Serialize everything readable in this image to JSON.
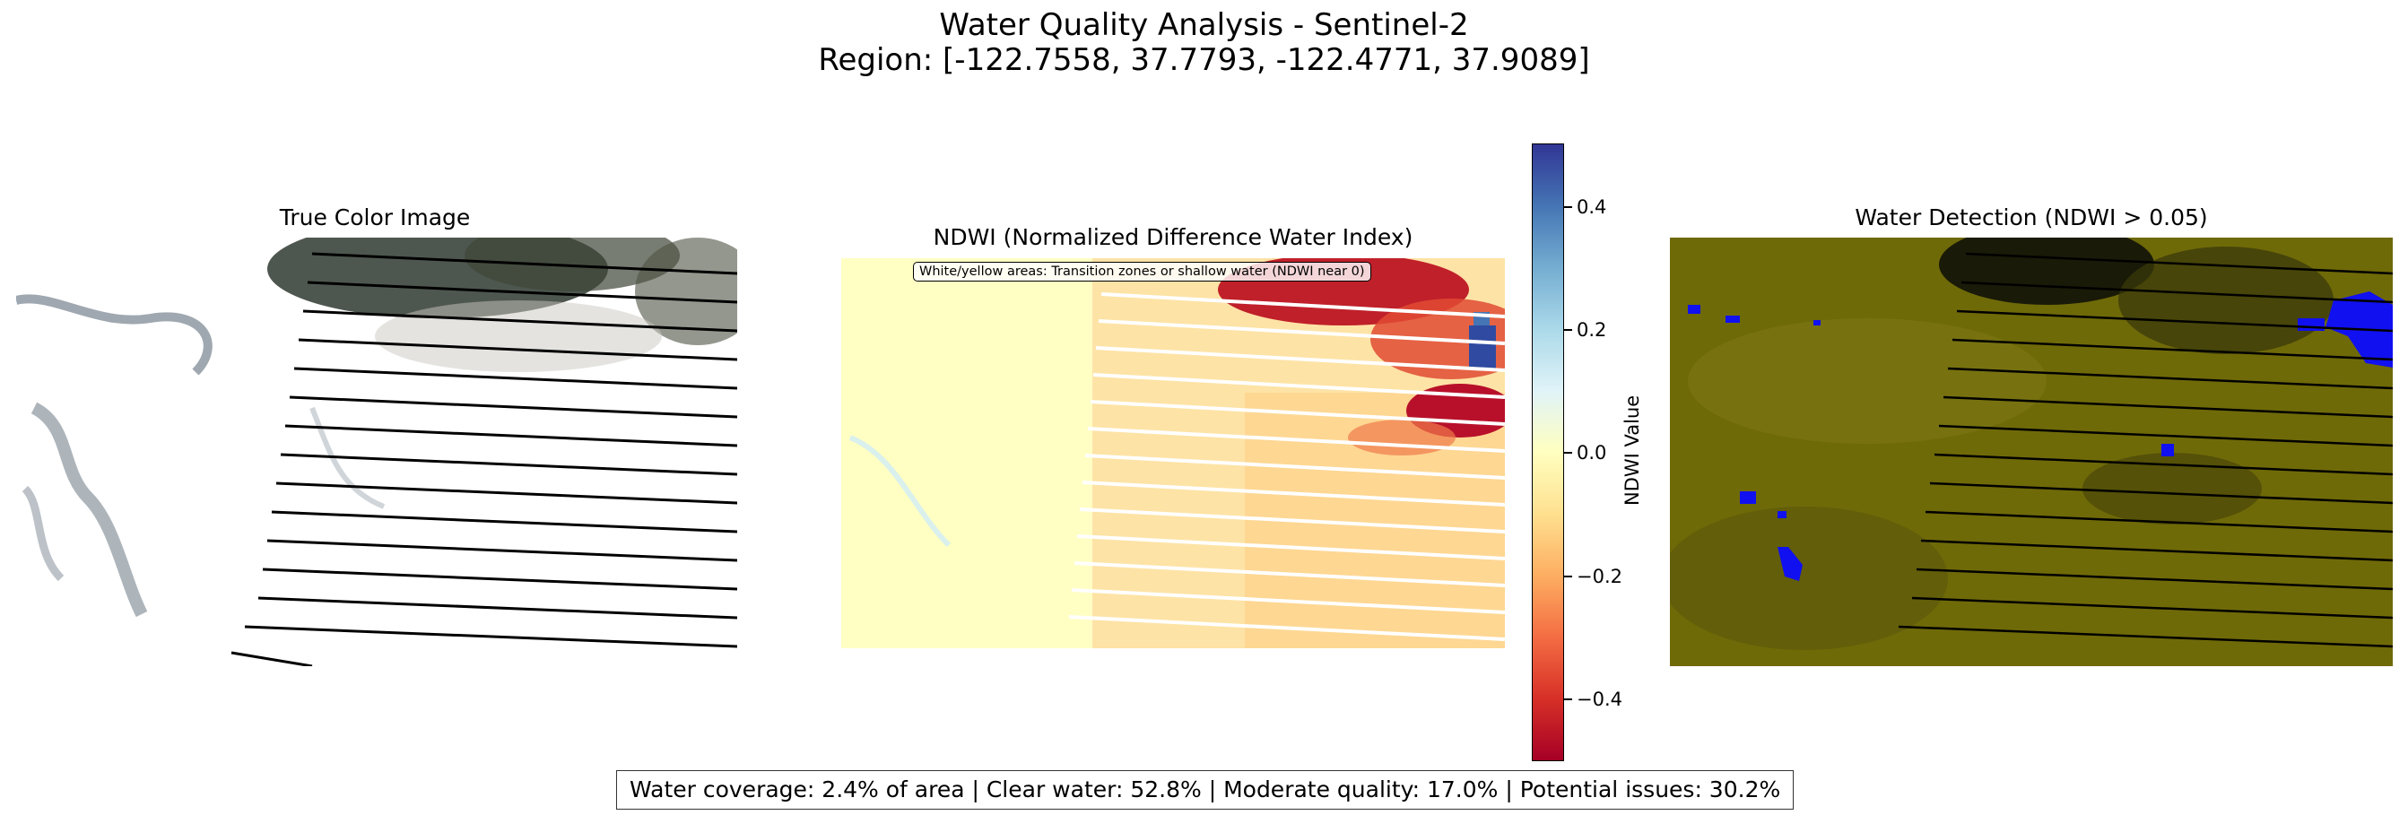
{
  "figure": {
    "title_line1": "Water Quality Analysis - Sentinel-2",
    "title_line2": "Region: [-122.7558, 37.7793, -122.4771, 37.9089]"
  },
  "panels": [
    {
      "title": "True Color Image",
      "icon": "satellite-rgb-image"
    },
    {
      "title": "NDWI (Normalized Difference Water Index)",
      "icon": "ndwi-heatmap",
      "annotation": "White/yellow areas: Transition zones or shallow water (NDWI near 0)"
    },
    {
      "title": "Water Detection (NDWI > 0.05)",
      "icon": "water-mask-overlay"
    }
  ],
  "colorbar": {
    "label": "NDWI Value",
    "colormap": "RdYlBu",
    "range": [
      -0.5,
      0.5
    ],
    "ticks": [
      0.4,
      0.2,
      0.0,
      -0.2,
      -0.4
    ],
    "tick_labels": [
      "0.4",
      "0.2",
      "0.0",
      "−0.2",
      "−0.4"
    ]
  },
  "stats_text": "Water coverage: 2.4% of area | Clear water: 52.8% | Moderate quality: 17.0% | Potential issues: 30.2%",
  "chart_data": [
    {
      "type": "heatmap",
      "title": "True Color Image",
      "content": "Sentinel-2 RGB composite"
    },
    {
      "type": "heatmap",
      "title": "NDWI (Normalized Difference Water Index)",
      "colorbar_label": "NDWI Value",
      "vmin": -0.5,
      "vmax": 0.5,
      "colorbar_ticks": [
        0.4,
        0.2,
        0.0,
        -0.2,
        -0.4
      ]
    },
    {
      "type": "heatmap",
      "title": "Water Detection (NDWI > 0.05)",
      "colors": {
        "water": "#0000ff",
        "land": "#6e6a00"
      }
    },
    {
      "type": "table",
      "title": "",
      "metrics": [
        {
          "name": "Water coverage",
          "value": 2.4,
          "unit": "% of area"
        },
        {
          "name": "Clear water",
          "value": 52.8,
          "unit": "%"
        },
        {
          "name": "Moderate quality",
          "value": 17.0,
          "unit": "%"
        },
        {
          "name": "Potential issues",
          "value": 30.2,
          "unit": "%"
        }
      ]
    }
  ]
}
